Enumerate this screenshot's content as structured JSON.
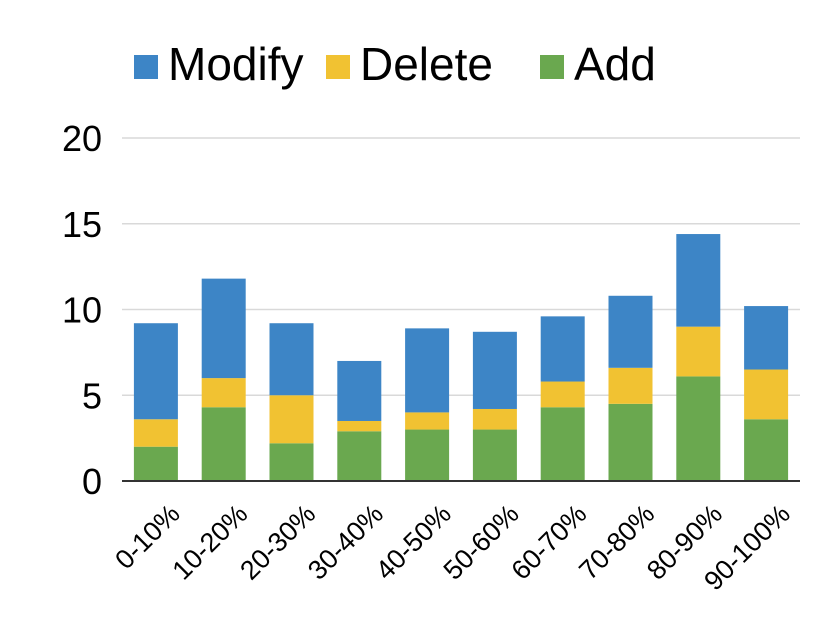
{
  "chart_data": {
    "type": "bar",
    "stacked": true,
    "categories": [
      "0-10%",
      "10-20%",
      "20-30%",
      "30-40%",
      "40-50%",
      "50-60%",
      "60-70%",
      "70-80%",
      "80-90%",
      "90-100%"
    ],
    "series": [
      {
        "name": "Add",
        "color": "#6aa84f",
        "values": [
          2.0,
          4.3,
          2.2,
          2.9,
          3.0,
          3.0,
          4.3,
          4.5,
          6.1,
          3.6
        ]
      },
      {
        "name": "Delete",
        "color": "#f1c232",
        "values": [
          1.6,
          1.7,
          2.8,
          0.6,
          1.0,
          1.2,
          1.5,
          2.1,
          2.9,
          2.9
        ]
      },
      {
        "name": "Modify",
        "color": "#3d85c6",
        "values": [
          5.6,
          5.8,
          4.2,
          3.5,
          4.9,
          4.5,
          3.8,
          4.2,
          5.4,
          3.7
        ]
      }
    ],
    "legend_order": [
      "Modify",
      "Delete",
      "Add"
    ],
    "legend_position": "top",
    "ylim": [
      0,
      20
    ],
    "yticks": [
      0,
      5,
      10,
      15,
      20
    ],
    "grid": true,
    "gridColor": "#d9d9d9",
    "axisColor": "#333333"
  }
}
